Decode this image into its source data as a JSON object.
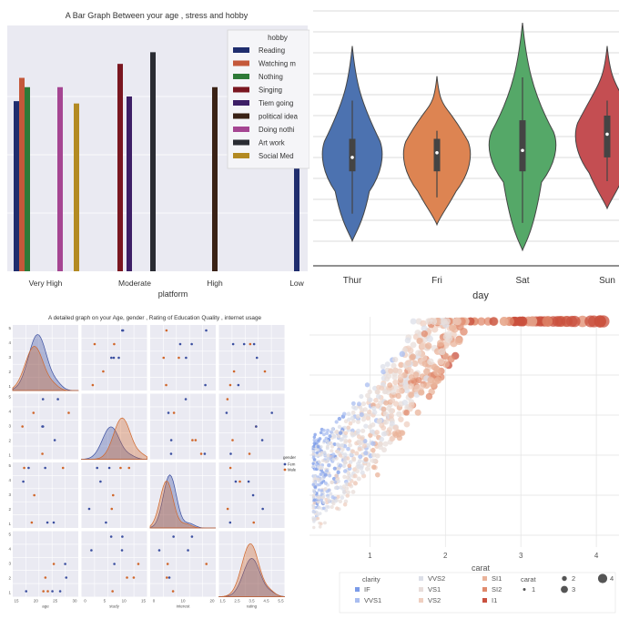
{
  "chart_data": [
    {
      "type": "bar",
      "title": "A Bar Graph Between your age , stress and hobby",
      "xlabel": "platform",
      "ylabel": "",
      "categories": [
        "Very High",
        "Moderate",
        "High",
        "Low"
      ],
      "legend_title": "hobby",
      "legend_position": "top-right",
      "series": [
        {
          "name": "Reading",
          "color": "#1f2d6e",
          "values": [
            0.73,
            0,
            0,
            0.55
          ]
        },
        {
          "name": "Watching m",
          "color": "#c4583a",
          "values": [
            0.83,
            0,
            0,
            0
          ]
        },
        {
          "name": "Nothing",
          "color": "#2e7a38",
          "values": [
            0.79,
            0,
            0,
            0
          ]
        },
        {
          "name": "Singing",
          "color": "#7a1620",
          "values": [
            0,
            0.89,
            0,
            0
          ]
        },
        {
          "name": "Tiem going",
          "color": "#3d1f66",
          "values": [
            0,
            0.75,
            0,
            0
          ]
        },
        {
          "name": "political idea",
          "color": "#3a2216",
          "values": [
            0,
            0,
            0.79,
            0
          ]
        },
        {
          "name": "Doing nothi",
          "color": "#a54592",
          "values": [
            0.79,
            0,
            0,
            0
          ]
        },
        {
          "name": "Art work",
          "color": "#2a2c33",
          "values": [
            0,
            0.94,
            0,
            0
          ]
        },
        {
          "name": "Social Med",
          "color": "#b38a22",
          "values": [
            0.72,
            0,
            0,
            0
          ]
        }
      ]
    },
    {
      "type": "violin",
      "title": "",
      "xlabel": "day",
      "ylabel": "",
      "categories": [
        "Thur",
        "Fri",
        "Sat",
        "Sun"
      ],
      "colors": [
        "#4c72b0",
        "#dd8452",
        "#55a868",
        "#c44e52"
      ],
      "stats": [
        {
          "min": 0.06,
          "q1": 0.36,
          "median": 0.42,
          "q3": 0.5,
          "max": 0.9
        },
        {
          "min": 0.13,
          "q1": 0.36,
          "median": 0.44,
          "q3": 0.5,
          "max": 0.77
        },
        {
          "min": 0.02,
          "q1": 0.36,
          "median": 0.45,
          "q3": 0.58,
          "max": 1.0
        },
        {
          "min": 0.2,
          "q1": 0.42,
          "median": 0.52,
          "q3": 0.6,
          "max": 0.9
        }
      ]
    },
    {
      "type": "pairplot",
      "title": "A detailed graph on your Age, gender , Rating of Education Quality , internet usage",
      "variables": [
        "age",
        "study",
        "interest",
        "rating"
      ],
      "hue": "gender",
      "hue_levels": [
        "Fem",
        "Male"
      ],
      "hue_colors": [
        "#3b4fa0",
        "#d0662a"
      ],
      "y_ticks": [
        [
          "1",
          "2",
          "3",
          "4",
          "5"
        ],
        [
          "1",
          "2",
          "3",
          "4",
          "5"
        ],
        [
          "1",
          "2",
          "3",
          "4",
          "5"
        ],
        [
          "1",
          "2",
          "3",
          "4",
          "5"
        ]
      ],
      "x_ticks": [
        [
          "15",
          "20",
          "25",
          "30"
        ],
        [
          "0",
          "5",
          "10",
          "15"
        ],
        [
          "0",
          "10",
          "20"
        ],
        [
          "1.5",
          "2.5",
          "3.5",
          "4.5",
          "5.5"
        ]
      ]
    },
    {
      "type": "scatter",
      "title": "",
      "xlabel": "carat",
      "ylabel": "",
      "x_ticks": [
        "1",
        "2",
        "3",
        "4"
      ],
      "xlim": [
        0.2,
        4.3
      ],
      "ylim": [
        0,
        1
      ],
      "hue": "clarity",
      "hue_levels": [
        "IF",
        "VVS1",
        "VVS2",
        "VS1",
        "VS2",
        "SI1",
        "SI2",
        "I1"
      ],
      "hue_colors": [
        "#7b9be8",
        "#a9bdf0",
        "#dcdfe8",
        "#e8ddda",
        "#efcfc0",
        "#eab39a",
        "#e08a6c",
        "#c9503e"
      ],
      "size": "carat",
      "size_levels": [
        "1",
        "2",
        "3",
        "4"
      ]
    }
  ]
}
